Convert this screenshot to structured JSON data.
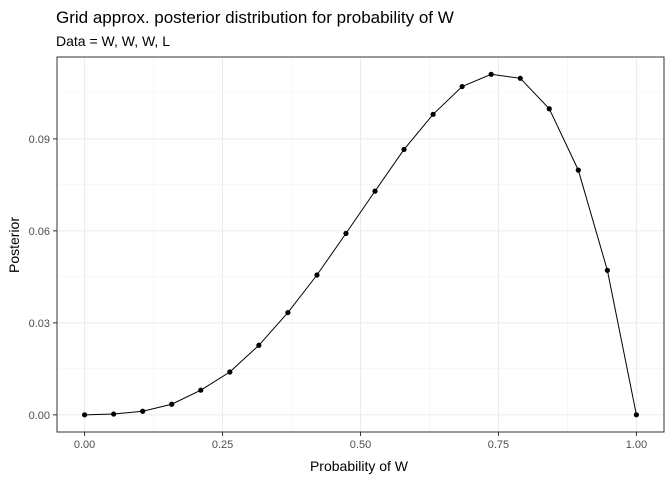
{
  "chart_data": {
    "type": "line",
    "title": "Grid approx. posterior distribution for probability of W",
    "subtitle": "Data = W, W, W, L",
    "xlabel": "Probability of W",
    "ylabel": "Posterior",
    "xlim": [
      -0.05,
      1.05
    ],
    "ylim": [
      -0.0056,
      0.1167
    ],
    "x_ticks": [
      0,
      0.25,
      0.5,
      0.75,
      1
    ],
    "x_tick_labels": [
      "0.00",
      "0.25",
      "0.50",
      "0.75",
      "1.00"
    ],
    "y_ticks": [
      0,
      0.03,
      0.06,
      0.09
    ],
    "y_tick_labels": [
      "0.00",
      "0.03",
      "0.06",
      "0.09"
    ],
    "grid": true,
    "markers": true,
    "series": [
      {
        "x": [
          0,
          0.0526,
          0.1053,
          0.1579,
          0.2105,
          0.2632,
          0.3158,
          0.3684,
          0.4211,
          0.4737,
          0.5263,
          0.5789,
          0.6316,
          0.6842,
          0.7368,
          0.7895,
          0.8421,
          0.8947,
          0.9474,
          1
        ],
        "values": [
          0.0,
          0.00026,
          0.00117,
          0.00345,
          0.00803,
          0.01397,
          0.02268,
          0.03335,
          0.0456,
          0.05917,
          0.07296,
          0.08656,
          0.09801,
          0.10706,
          0.11106,
          0.10975,
          0.09982,
          0.07981,
          0.04712,
          0.0
        ]
      }
    ],
    "line_color": "#000000",
    "point_color": "#000000"
  }
}
